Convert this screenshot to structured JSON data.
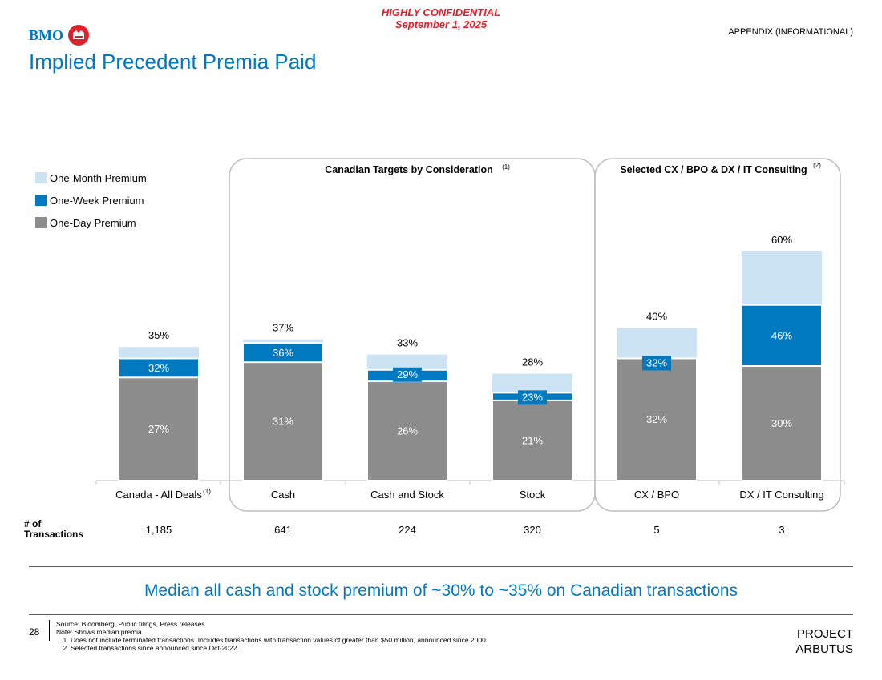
{
  "header": {
    "confidential_line1": "HIGHLY CONFIDENTIAL",
    "confidential_line2": "September 1, 2025",
    "brand": "BMO",
    "section_label": "APPENDIX (INFORMATIONAL)",
    "title": "Implied Precedent Premia Paid"
  },
  "colors": {
    "brand_blue": "#0079c1",
    "confidential_red": "#e0202a",
    "one_month": "#cce3f3",
    "one_week": "#0079c1",
    "one_day": "#8c8c8c"
  },
  "legend": [
    {
      "label": "One-Month Premium"
    },
    {
      "label": "One-Week Premium"
    },
    {
      "label": "One-Day Premium"
    }
  ],
  "chart_data": {
    "type": "bar",
    "subtype": "overlapping stacked (cumulative) columns",
    "categories": [
      "Canada - All Deals",
      "Cash",
      "Cash and Stock",
      "Stock",
      "CX / BPO",
      "DX / IT Consulting"
    ],
    "category_footnotes": [
      "(1)",
      "",
      "",
      "",
      "",
      ""
    ],
    "series": [
      {
        "name": "One-Month Premium",
        "values": [
          35,
          37,
          33,
          28,
          40,
          60
        ],
        "labels": [
          "35%",
          "37%",
          "33%",
          "28%",
          "40%",
          "60%"
        ]
      },
      {
        "name": "One-Week Premium",
        "values": [
          32,
          36,
          29,
          23,
          32,
          46
        ],
        "labels": [
          "32%",
          "36%",
          "29%",
          "23%",
          "32%",
          "46%"
        ]
      },
      {
        "name": "One-Day Premium",
        "values": [
          27,
          31,
          26,
          21,
          32,
          30
        ],
        "labels": [
          "27%",
          "31%",
          "26%",
          "21%",
          "32%",
          "30%"
        ]
      }
    ],
    "ylim": [
      0,
      70
    ],
    "groups": [
      {
        "title": "Canadian Targets by Consideration",
        "footnote": "(1)",
        "categories": [
          "Cash",
          "Cash and Stock",
          "Stock"
        ]
      },
      {
        "title": "Selected CX / BPO & DX / IT Consulting",
        "footnote": "(2)",
        "categories": [
          "CX / BPO",
          "DX / IT Consulting"
        ]
      }
    ]
  },
  "transactions": {
    "label_line1": "# of",
    "label_line2": "Transactions",
    "counts": [
      "1,185",
      "641",
      "224",
      "320",
      "5",
      "3"
    ]
  },
  "takeaway": "Median all cash and stock premium of ~30% to ~35% on Canadian transactions",
  "footer": {
    "page_number": "28",
    "source": "Source: Bloomberg, Public filings, Press releases",
    "note": "Note: Shows median premia.",
    "notes": [
      "Does not include terminated transactions. Includes transactions with transaction values of greater than $50 million, announced since 2000.",
      "Selected transactions since announced since Oct-2022."
    ],
    "project_line1": "PROJECT",
    "project_line2": "ARBUTUS"
  }
}
